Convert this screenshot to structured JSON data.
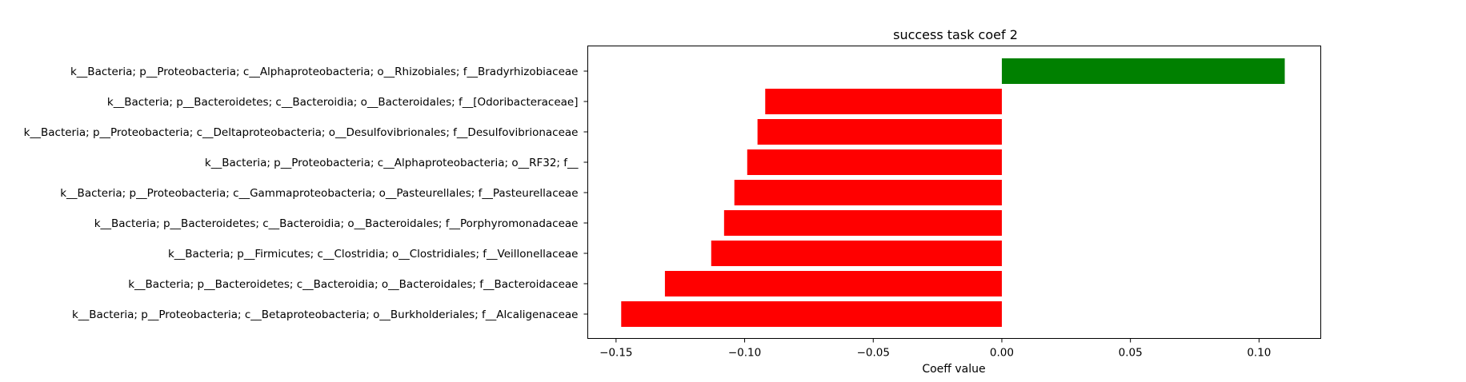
{
  "chart_data": {
    "type": "bar",
    "orientation": "horizontal",
    "title": "success task coef 2",
    "xlabel": "Coeff value",
    "ylabel": "",
    "xlim": [
      -0.161,
      0.124
    ],
    "xticks": [
      -0.15,
      -0.1,
      -0.05,
      0.0,
      0.05,
      0.1
    ],
    "xtick_labels": [
      "−0.15",
      "−0.10",
      "−0.05",
      "0.00",
      "0.05",
      "0.10"
    ],
    "grid": false,
    "categories": [
      "k__Bacteria; p__Proteobacteria; c__Alphaproteobacteria; o__Rhizobiales; f__Bradyrhizobiaceae",
      "k__Bacteria; p__Bacteroidetes; c__Bacteroidia; o__Bacteroidales; f__[Odoribacteraceae]",
      "k__Bacteria; p__Proteobacteria; c__Deltaproteobacteria; o__Desulfovibrionales; f__Desulfovibrionaceae",
      "k__Bacteria; p__Proteobacteria; c__Alphaproteobacteria; o__RF32; f__",
      "k__Bacteria; p__Proteobacteria; c__Gammaproteobacteria; o__Pasteurellales; f__Pasteurellaceae",
      "k__Bacteria; p__Bacteroidetes; c__Bacteroidia; o__Bacteroidales; f__Porphyromonadaceae",
      "k__Bacteria; p__Firmicutes; c__Clostridia; o__Clostridiales; f__Veillonellaceae",
      "k__Bacteria; p__Bacteroidetes; c__Bacteroidia; o__Bacteroidales; f__Bacteroidaceae",
      "k__Bacteria; p__Proteobacteria; c__Betaproteobacteria; o__Burkholderiales; f__Alcaligenaceae"
    ],
    "values": [
      0.11,
      -0.092,
      -0.095,
      -0.099,
      -0.104,
      -0.108,
      -0.113,
      -0.131,
      -0.148
    ],
    "colors": {
      "positive": "#008000",
      "negative": "#ff0000"
    }
  }
}
